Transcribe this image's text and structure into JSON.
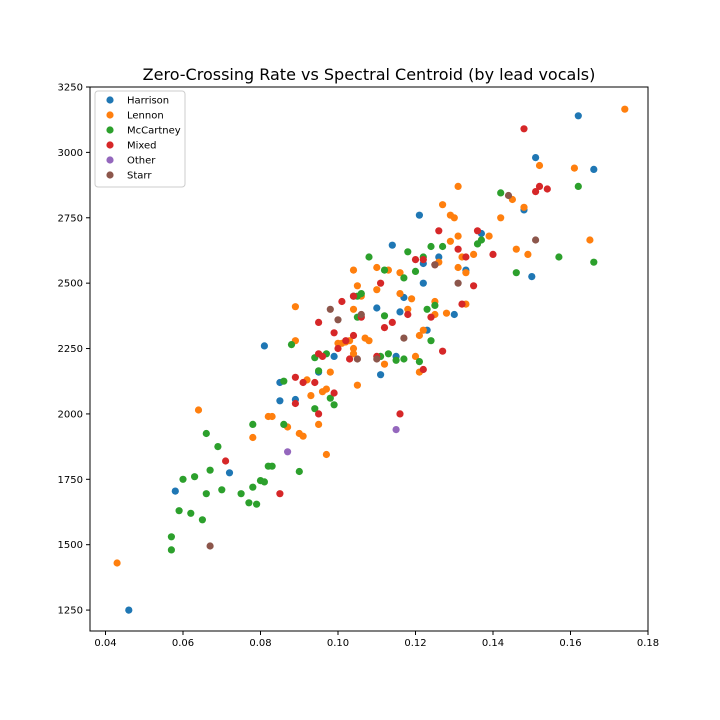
{
  "chart_data": {
    "type": "scatter",
    "title": "Zero-Crossing Rate vs Spectral Centroid (by lead vocals)",
    "xlabel": "",
    "ylabel": "",
    "xlim": [
      0.036,
      0.18
    ],
    "ylim": [
      1170,
      3250
    ],
    "xticks": [
      "0.04",
      "0.06",
      "0.08",
      "0.10",
      "0.12",
      "0.14",
      "0.16",
      "0.18"
    ],
    "yticks": [
      "1250",
      "1500",
      "1750",
      "2000",
      "2250",
      "2500",
      "2750",
      "3000",
      "3250"
    ],
    "grid": false,
    "legend_position": "top-left",
    "series": [
      {
        "name": "Harrison",
        "color": "#1f77b4",
        "points": [
          [
            0.046,
            1250
          ],
          [
            0.058,
            1705
          ],
          [
            0.072,
            1775
          ],
          [
            0.081,
            2260
          ],
          [
            0.085,
            2120
          ],
          [
            0.085,
            2050
          ],
          [
            0.089,
            2055
          ],
          [
            0.095,
            2160
          ],
          [
            0.099,
            2220
          ],
          [
            0.104,
            2450
          ],
          [
            0.11,
            2405
          ],
          [
            0.111,
            2150
          ],
          [
            0.115,
            2220
          ],
          [
            0.116,
            2390
          ],
          [
            0.117,
            2445
          ],
          [
            0.114,
            2645
          ],
          [
            0.121,
            2760
          ],
          [
            0.122,
            2575
          ],
          [
            0.123,
            2320
          ],
          [
            0.122,
            2500
          ],
          [
            0.126,
            2600
          ],
          [
            0.13,
            2380
          ],
          [
            0.133,
            2550
          ],
          [
            0.137,
            2690
          ],
          [
            0.148,
            2780
          ],
          [
            0.15,
            2525
          ],
          [
            0.151,
            2980
          ],
          [
            0.162,
            3140
          ],
          [
            0.166,
            2935
          ]
        ]
      },
      {
        "name": "Lennon",
        "color": "#ff7f0e",
        "points": [
          [
            0.043,
            1430
          ],
          [
            0.064,
            2015
          ],
          [
            0.078,
            1910
          ],
          [
            0.082,
            1990
          ],
          [
            0.083,
            1990
          ],
          [
            0.087,
            1950
          ],
          [
            0.089,
            2410
          ],
          [
            0.089,
            2280
          ],
          [
            0.09,
            1925
          ],
          [
            0.091,
            1915
          ],
          [
            0.092,
            2130
          ],
          [
            0.093,
            2070
          ],
          [
            0.095,
            1960
          ],
          [
            0.096,
            2085
          ],
          [
            0.097,
            2095
          ],
          [
            0.097,
            1845
          ],
          [
            0.098,
            2160
          ],
          [
            0.1,
            2270
          ],
          [
            0.101,
            2270
          ],
          [
            0.102,
            2275
          ],
          [
            0.103,
            2280
          ],
          [
            0.104,
            2250
          ],
          [
            0.104,
            2230
          ],
          [
            0.104,
            2400
          ],
          [
            0.104,
            2550
          ],
          [
            0.105,
            2490
          ],
          [
            0.105,
            2110
          ],
          [
            0.106,
            2450
          ],
          [
            0.107,
            2290
          ],
          [
            0.108,
            2280
          ],
          [
            0.11,
            2475
          ],
          [
            0.11,
            2560
          ],
          [
            0.112,
            2190
          ],
          [
            0.113,
            2550
          ],
          [
            0.116,
            2460
          ],
          [
            0.116,
            2540
          ],
          [
            0.118,
            2400
          ],
          [
            0.119,
            2440
          ],
          [
            0.12,
            2220
          ],
          [
            0.121,
            2300
          ],
          [
            0.121,
            2160
          ],
          [
            0.122,
            2320
          ],
          [
            0.125,
            2380
          ],
          [
            0.125,
            2430
          ],
          [
            0.126,
            2580
          ],
          [
            0.127,
            2800
          ],
          [
            0.128,
            2385
          ],
          [
            0.129,
            2660
          ],
          [
            0.129,
            2760
          ],
          [
            0.13,
            2750
          ],
          [
            0.131,
            2680
          ],
          [
            0.131,
            2560
          ],
          [
            0.131,
            2870
          ],
          [
            0.132,
            2600
          ],
          [
            0.133,
            2540
          ],
          [
            0.133,
            2420
          ],
          [
            0.135,
            2610
          ],
          [
            0.139,
            2680
          ],
          [
            0.142,
            2750
          ],
          [
            0.145,
            2820
          ],
          [
            0.146,
            2630
          ],
          [
            0.148,
            2790
          ],
          [
            0.149,
            2610
          ],
          [
            0.152,
            2950
          ],
          [
            0.161,
            2940
          ],
          [
            0.165,
            2665
          ],
          [
            0.174,
            3165
          ]
        ]
      },
      {
        "name": "McCartney",
        "color": "#2ca02c",
        "points": [
          [
            0.057,
            1530
          ],
          [
            0.057,
            1480
          ],
          [
            0.059,
            1630
          ],
          [
            0.06,
            1750
          ],
          [
            0.062,
            1620
          ],
          [
            0.063,
            1760
          ],
          [
            0.065,
            1595
          ],
          [
            0.066,
            1925
          ],
          [
            0.066,
            1695
          ],
          [
            0.067,
            1785
          ],
          [
            0.069,
            1875
          ],
          [
            0.07,
            1710
          ],
          [
            0.075,
            1695
          ],
          [
            0.077,
            1660
          ],
          [
            0.078,
            1960
          ],
          [
            0.078,
            1720
          ],
          [
            0.079,
            1655
          ],
          [
            0.08,
            1745
          ],
          [
            0.081,
            1740
          ],
          [
            0.082,
            1800
          ],
          [
            0.083,
            1800
          ],
          [
            0.086,
            2125
          ],
          [
            0.086,
            1960
          ],
          [
            0.088,
            2265
          ],
          [
            0.09,
            1780
          ],
          [
            0.094,
            2020
          ],
          [
            0.094,
            2215
          ],
          [
            0.095,
            2165
          ],
          [
            0.097,
            2230
          ],
          [
            0.098,
            2060
          ],
          [
            0.099,
            2035
          ],
          [
            0.105,
            2370
          ],
          [
            0.105,
            2450
          ],
          [
            0.106,
            2460
          ],
          [
            0.108,
            2600
          ],
          [
            0.111,
            2220
          ],
          [
            0.112,
            2550
          ],
          [
            0.112,
            2375
          ],
          [
            0.113,
            2230
          ],
          [
            0.115,
            2205
          ],
          [
            0.117,
            2520
          ],
          [
            0.117,
            2210
          ],
          [
            0.118,
            2620
          ],
          [
            0.12,
            2545
          ],
          [
            0.121,
            2200
          ],
          [
            0.122,
            2600
          ],
          [
            0.123,
            2400
          ],
          [
            0.124,
            2280
          ],
          [
            0.124,
            2640
          ],
          [
            0.125,
            2415
          ],
          [
            0.127,
            2640
          ],
          [
            0.136,
            2650
          ],
          [
            0.137,
            2665
          ],
          [
            0.142,
            2845
          ],
          [
            0.146,
            2540
          ],
          [
            0.157,
            2600
          ],
          [
            0.162,
            2870
          ],
          [
            0.166,
            2580
          ]
        ]
      },
      {
        "name": "Mixed",
        "color": "#d62728",
        "points": [
          [
            0.071,
            1820
          ],
          [
            0.085,
            1695
          ],
          [
            0.089,
            2140
          ],
          [
            0.089,
            2040
          ],
          [
            0.091,
            2120
          ],
          [
            0.094,
            2120
          ],
          [
            0.095,
            2350
          ],
          [
            0.095,
            2230
          ],
          [
            0.095,
            2000
          ],
          [
            0.096,
            2220
          ],
          [
            0.099,
            2310
          ],
          [
            0.099,
            2080
          ],
          [
            0.1,
            2250
          ],
          [
            0.101,
            2430
          ],
          [
            0.102,
            2280
          ],
          [
            0.103,
            2210
          ],
          [
            0.104,
            2300
          ],
          [
            0.104,
            2450
          ],
          [
            0.106,
            2370
          ],
          [
            0.11,
            2220
          ],
          [
            0.111,
            2500
          ],
          [
            0.112,
            2330
          ],
          [
            0.114,
            2350
          ],
          [
            0.116,
            2000
          ],
          [
            0.118,
            2380
          ],
          [
            0.12,
            2590
          ],
          [
            0.122,
            2590
          ],
          [
            0.122,
            2170
          ],
          [
            0.124,
            2370
          ],
          [
            0.125,
            2570
          ],
          [
            0.126,
            2700
          ],
          [
            0.127,
            2240
          ],
          [
            0.131,
            2630
          ],
          [
            0.132,
            2420
          ],
          [
            0.133,
            2600
          ],
          [
            0.135,
            2490
          ],
          [
            0.136,
            2700
          ],
          [
            0.14,
            2610
          ],
          [
            0.148,
            3090
          ],
          [
            0.151,
            2850
          ],
          [
            0.152,
            2870
          ],
          [
            0.154,
            2860
          ]
        ]
      },
      {
        "name": "Other",
        "color": "#9467bd",
        "points": [
          [
            0.087,
            1855
          ],
          [
            0.115,
            1940
          ]
        ]
      },
      {
        "name": "Starr",
        "color": "#8c564b",
        "points": [
          [
            0.067,
            1495
          ],
          [
            0.098,
            2400
          ],
          [
            0.1,
            2360
          ],
          [
            0.105,
            2210
          ],
          [
            0.106,
            2380
          ],
          [
            0.117,
            2290
          ],
          [
            0.11,
            2210
          ],
          [
            0.125,
            2570
          ],
          [
            0.131,
            2500
          ],
          [
            0.144,
            2835
          ],
          [
            0.151,
            2665
          ]
        ]
      }
    ]
  }
}
